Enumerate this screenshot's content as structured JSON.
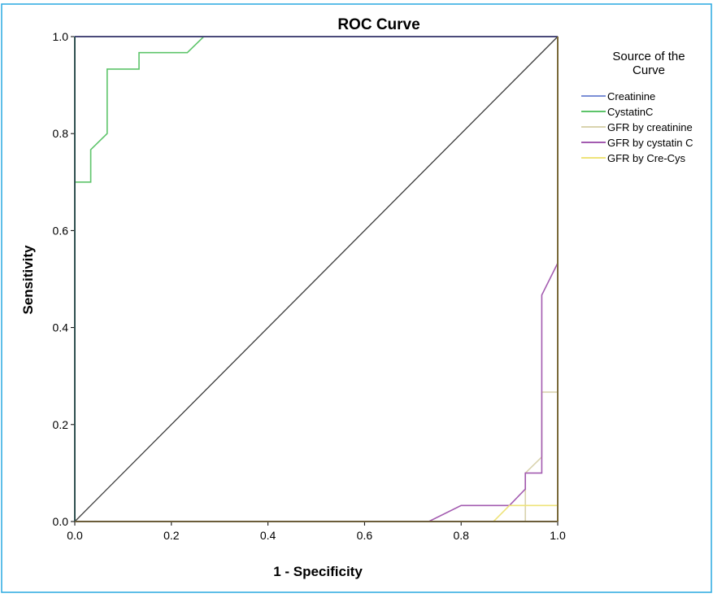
{
  "chart_data": {
    "type": "line",
    "title": "ROC Curve",
    "xlabel": "1 - Specificity",
    "ylabel": "Sensitivity",
    "xlim": [
      0,
      1
    ],
    "ylim": [
      0,
      1
    ],
    "xticks": [
      "0.0",
      "0.2",
      "0.4",
      "0.6",
      "0.8",
      "1.0"
    ],
    "yticks": [
      "0.0",
      "0.2",
      "0.4",
      "0.6",
      "0.8",
      "1.0"
    ],
    "grid": false,
    "legend": {
      "title": "Source of the Curve",
      "placement": "right",
      "entries": [
        "Creatinine",
        "CystatinC",
        "GFR by creatinine",
        "GFR by cystatin C",
        "GFR by Cre-Cys"
      ]
    },
    "series": [
      {
        "name": "Creatinine",
        "color": "#7b8fd6",
        "x": [
          0,
          0,
          1
        ],
        "y": [
          0,
          1,
          1
        ]
      },
      {
        "name": "CystatinC",
        "color": "#5dc46a",
        "x": [
          0,
          0,
          0.033,
          0.033,
          0.067,
          0.067,
          0.133,
          0.133,
          0.233,
          0.267,
          1
        ],
        "y": [
          0,
          0.7,
          0.7,
          0.767,
          0.8,
          0.933,
          0.933,
          0.967,
          0.967,
          1,
          1
        ]
      },
      {
        "name": "GFR by creatinine",
        "color": "#d9d3ae",
        "x": [
          0,
          0.933,
          0.933,
          0.967,
          0.967,
          1,
          1
        ],
        "y": [
          0,
          0,
          0.1,
          0.133,
          0.267,
          0.267,
          1
        ]
      },
      {
        "name": "GFR by cystatin C",
        "color": "#a35bb0",
        "x": [
          0,
          0.733,
          0.8,
          0.9,
          0.933,
          0.933,
          0.967,
          0.967,
          1,
          1
        ],
        "y": [
          0,
          0,
          0.033,
          0.033,
          0.067,
          0.1,
          0.1,
          0.467,
          0.533,
          1
        ]
      },
      {
        "name": "GFR by Cre-Cys",
        "color": "#eee37a",
        "x": [
          0,
          0.867,
          0.9,
          1,
          1
        ],
        "y": [
          0,
          0,
          0.033,
          0.033,
          1
        ]
      }
    ],
    "reference_line": {
      "x": [
        0,
        1
      ],
      "y": [
        0,
        1
      ],
      "color": "#3a3a3a"
    }
  }
}
